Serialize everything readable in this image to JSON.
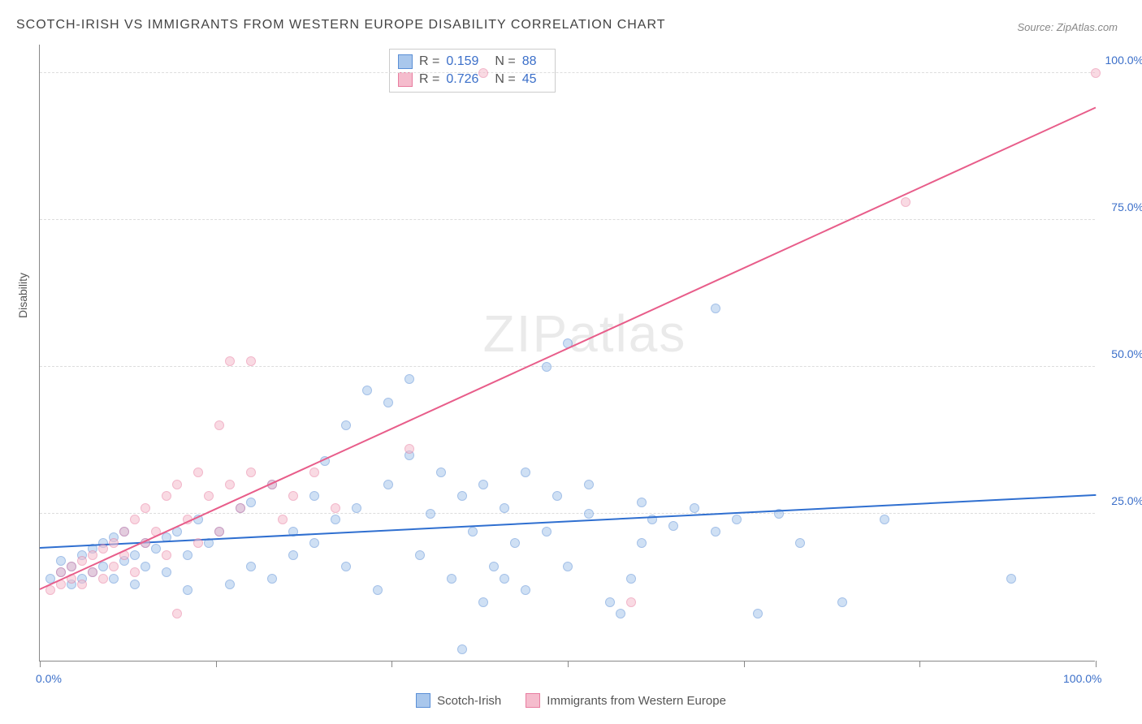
{
  "title": "SCOTCH-IRISH VS IMMIGRANTS FROM WESTERN EUROPE DISABILITY CORRELATION CHART",
  "source": "Source: ZipAtlas.com",
  "ylabel": "Disability",
  "watermark_a": "ZIP",
  "watermark_b": "atlas",
  "chart": {
    "type": "scatter",
    "xlim": [
      0,
      100
    ],
    "ylim": [
      0,
      105
    ],
    "x_ticks": [
      0,
      16.7,
      33.3,
      50,
      66.7,
      83.3,
      100
    ],
    "x_tick_labels": [
      "0.0%",
      "",
      "",
      "",
      "",
      "",
      "100.0%"
    ],
    "y_grid": [
      25,
      50,
      75,
      100
    ],
    "y_tick_labels": [
      "25.0%",
      "50.0%",
      "75.0%",
      "100.0%"
    ],
    "background_color": "#ffffff",
    "grid_color": "#dddddd",
    "axis_color": "#888888",
    "tick_label_color": "#3b6fc9",
    "marker_radius": 6,
    "marker_opacity": 0.55,
    "series": [
      {
        "name": "Scotch-Irish",
        "fill": "#a9c7ec",
        "stroke": "#5b8fd6",
        "trend_color": "#2f6fd0",
        "trend": {
          "x1": 0,
          "y1": 19,
          "x2": 100,
          "y2": 28
        },
        "R": "0.159",
        "N": "88",
        "points": [
          [
            1,
            14
          ],
          [
            2,
            15
          ],
          [
            2,
            17
          ],
          [
            3,
            13
          ],
          [
            3,
            16
          ],
          [
            4,
            14
          ],
          [
            4,
            18
          ],
          [
            5,
            15
          ],
          [
            5,
            19
          ],
          [
            6,
            16
          ],
          [
            6,
            20
          ],
          [
            7,
            14
          ],
          [
            7,
            21
          ],
          [
            8,
            17
          ],
          [
            8,
            22
          ],
          [
            9,
            18
          ],
          [
            9,
            13
          ],
          [
            10,
            20
          ],
          [
            10,
            16
          ],
          [
            11,
            19
          ],
          [
            12,
            21
          ],
          [
            12,
            15
          ],
          [
            13,
            22
          ],
          [
            14,
            18
          ],
          [
            14,
            12
          ],
          [
            15,
            24
          ],
          [
            16,
            20
          ],
          [
            17,
            22
          ],
          [
            18,
            13
          ],
          [
            19,
            26
          ],
          [
            20,
            16
          ],
          [
            20,
            27
          ],
          [
            22,
            14
          ],
          [
            22,
            30
          ],
          [
            24,
            18
          ],
          [
            24,
            22
          ],
          [
            26,
            20
          ],
          [
            26,
            28
          ],
          [
            27,
            34
          ],
          [
            28,
            24
          ],
          [
            29,
            40
          ],
          [
            29,
            16
          ],
          [
            30,
            26
          ],
          [
            31,
            46
          ],
          [
            32,
            12
          ],
          [
            33,
            44
          ],
          [
            33,
            30
          ],
          [
            35,
            35
          ],
          [
            35,
            48
          ],
          [
            36,
            18
          ],
          [
            37,
            25
          ],
          [
            38,
            32
          ],
          [
            39,
            14
          ],
          [
            40,
            2
          ],
          [
            40,
            28
          ],
          [
            41,
            22
          ],
          [
            42,
            30
          ],
          [
            42,
            10
          ],
          [
            43,
            16
          ],
          [
            44,
            14
          ],
          [
            44,
            26
          ],
          [
            45,
            20
          ],
          [
            46,
            12
          ],
          [
            46,
            32
          ],
          [
            48,
            22
          ],
          [
            48,
            50
          ],
          [
            49,
            28
          ],
          [
            50,
            16
          ],
          [
            52,
            25
          ],
          [
            52,
            30
          ],
          [
            54,
            10
          ],
          [
            55,
            8
          ],
          [
            56,
            14
          ],
          [
            57,
            20
          ],
          [
            57,
            27
          ],
          [
            58,
            24
          ],
          [
            60,
            23
          ],
          [
            62,
            26
          ],
          [
            64,
            60
          ],
          [
            64,
            22
          ],
          [
            66,
            24
          ],
          [
            68,
            8
          ],
          [
            70,
            25
          ],
          [
            72,
            20
          ],
          [
            76,
            10
          ],
          [
            80,
            24
          ],
          [
            92,
            14
          ],
          [
            50,
            54
          ]
        ]
      },
      {
        "name": "Immigrants from Western Europe",
        "fill": "#f5bccd",
        "stroke": "#e87da0",
        "trend_color": "#e85d8a",
        "trend": {
          "x1": 0,
          "y1": 12,
          "x2": 100,
          "y2": 94
        },
        "R": "0.726",
        "N": "45",
        "points": [
          [
            1,
            12
          ],
          [
            2,
            13
          ],
          [
            2,
            15
          ],
          [
            3,
            14
          ],
          [
            3,
            16
          ],
          [
            4,
            13
          ],
          [
            4,
            17
          ],
          [
            5,
            15
          ],
          [
            5,
            18
          ],
          [
            6,
            14
          ],
          [
            6,
            19
          ],
          [
            7,
            16
          ],
          [
            7,
            20
          ],
          [
            8,
            18
          ],
          [
            8,
            22
          ],
          [
            9,
            15
          ],
          [
            9,
            24
          ],
          [
            10,
            20
          ],
          [
            10,
            26
          ],
          [
            11,
            22
          ],
          [
            12,
            28
          ],
          [
            12,
            18
          ],
          [
            13,
            30
          ],
          [
            13,
            8
          ],
          [
            14,
            24
          ],
          [
            15,
            32
          ],
          [
            15,
            20
          ],
          [
            16,
            28
          ],
          [
            17,
            40
          ],
          [
            17,
            22
          ],
          [
            18,
            30
          ],
          [
            18,
            51
          ],
          [
            19,
            26
          ],
          [
            20,
            51
          ],
          [
            20,
            32
          ],
          [
            22,
            30
          ],
          [
            23,
            24
          ],
          [
            24,
            28
          ],
          [
            26,
            32
          ],
          [
            28,
            26
          ],
          [
            35,
            36
          ],
          [
            42,
            100
          ],
          [
            56,
            10
          ],
          [
            82,
            78
          ],
          [
            100,
            100
          ]
        ]
      }
    ]
  },
  "bottom_legend": {
    "series1": "Scotch-Irish",
    "series2": "Immigrants from Western Europe"
  }
}
